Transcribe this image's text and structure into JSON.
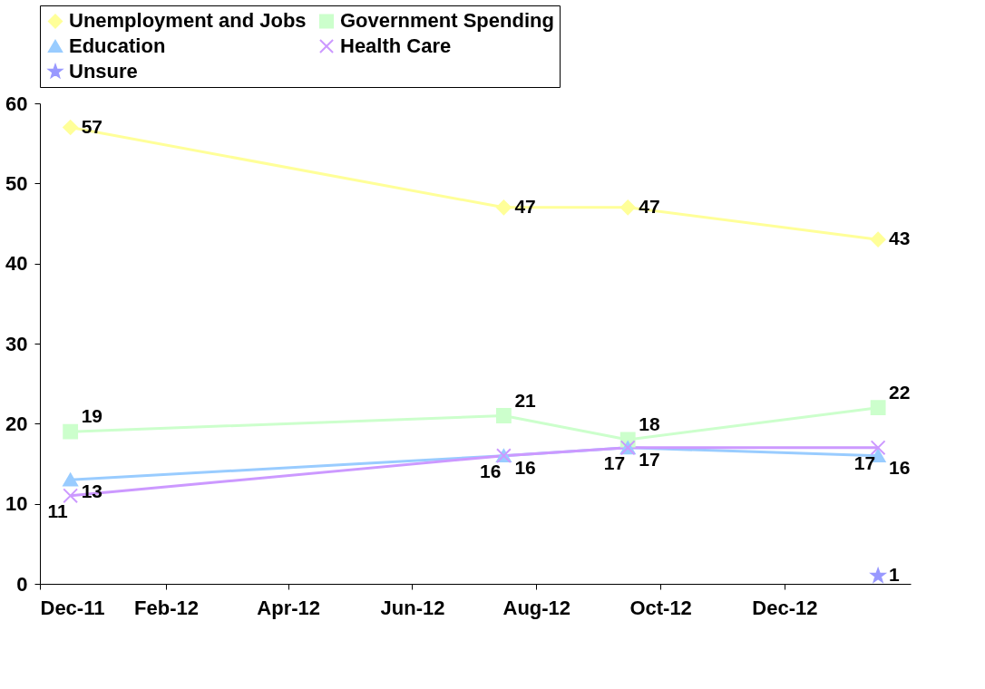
{
  "chart_data": {
    "type": "line",
    "x": [
      "2011-12-16",
      "2012-07-16",
      "2012-09-15",
      "2013-01-16"
    ],
    "xlim": [
      "2011-12-01",
      "2013-02-01"
    ],
    "xticks": [
      {
        "value": "2011-12-01",
        "label": "Dec-11"
      },
      {
        "value": "2012-02-01",
        "label": "Feb-12"
      },
      {
        "value": "2012-04-01",
        "label": "Apr-12"
      },
      {
        "value": "2012-06-01",
        "label": "Jun-12"
      },
      {
        "value": "2012-08-01",
        "label": "Aug-12"
      },
      {
        "value": "2012-10-01",
        "label": "Oct-12"
      },
      {
        "value": "2012-12-01",
        "label": "Dec-12"
      }
    ],
    "ylim": [
      0,
      60
    ],
    "yticks": [
      0,
      10,
      20,
      30,
      40,
      50,
      60
    ],
    "grid": false,
    "legend": "top",
    "data_labels": true,
    "series": [
      {
        "name": "Unemployment and Jobs",
        "color": "#ffff99",
        "marker": "diamond",
        "values": [
          57,
          47,
          47,
          43
        ]
      },
      {
        "name": "Government Spending",
        "color": "#ccffcc",
        "marker": "square",
        "values": [
          19,
          21,
          18,
          22
        ]
      },
      {
        "name": "Education",
        "color": "#99ccff",
        "marker": "triangle",
        "values": [
          13,
          16,
          17,
          16
        ]
      },
      {
        "name": "Health Care",
        "color": "#cc99ff",
        "marker": "cross",
        "values": [
          11,
          16,
          17,
          17
        ]
      },
      {
        "name": "Unsure",
        "color": "#9999ff",
        "marker": "star",
        "values": [
          null,
          null,
          null,
          1
        ]
      }
    ]
  }
}
